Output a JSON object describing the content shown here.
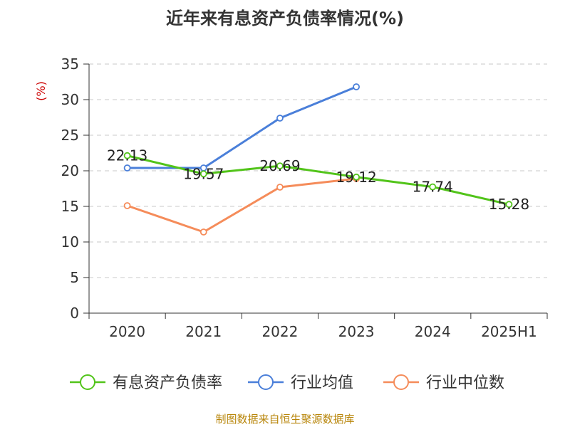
{
  "chart_data": {
    "type": "line",
    "title": "近年来有息资产负债率情况(%)",
    "ylabel": "(%)",
    "categories": [
      "2020",
      "2021",
      "2022",
      "2023",
      "2024",
      "2025H1"
    ],
    "ylim": [
      0,
      35
    ],
    "yticks": [
      0,
      5,
      10,
      15,
      20,
      25,
      30,
      35
    ],
    "grid": true,
    "legend_position": "bottom",
    "series": [
      {
        "name": "有息资产负债率",
        "color": "#52c41a",
        "values": [
          22.13,
          19.57,
          20.69,
          19.12,
          17.74,
          15.28
        ],
        "labels": [
          "22.13",
          "19.57",
          "20.69",
          "19.12",
          "17.74",
          "15.28"
        ]
      },
      {
        "name": "行业均值",
        "color": "#4a7fd9",
        "values": [
          20.4,
          20.4,
          27.4,
          31.8,
          null,
          null
        ]
      },
      {
        "name": "行业中位数",
        "color": "#f58c5a",
        "values": [
          15.1,
          11.4,
          17.7,
          18.9,
          null,
          null
        ]
      }
    ]
  },
  "footer": {
    "source": "制图数据来自恒生聚源数据库"
  }
}
